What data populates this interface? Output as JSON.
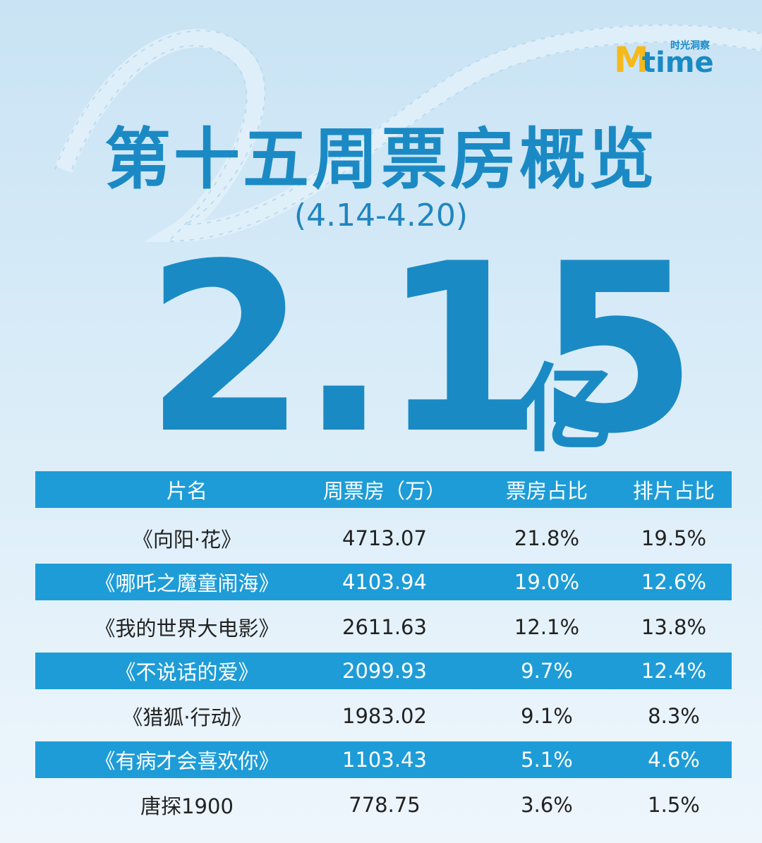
{
  "logo": {
    "mark": "M",
    "word": "time",
    "tagline": "时光洞察"
  },
  "header": {
    "title": "第十五周票房概览",
    "subtitle": "(4.14-4.20)",
    "total": "2.15",
    "unit": "亿"
  },
  "table": {
    "columns": [
      "片名",
      "周票房（万）",
      "票房占比",
      "排片占比"
    ],
    "rows": [
      [
        "《向阳·花》",
        "4713.07",
        "21.8%",
        "19.5%"
      ],
      [
        "《哪吒之魔童闹海》",
        "4103.94",
        "19.0%",
        "12.6%"
      ],
      [
        "《我的世界大电影》",
        "2611.63",
        "12.1%",
        "13.8%"
      ],
      [
        "《不说话的爱》",
        "2099.93",
        "9.7%",
        "12.4%"
      ],
      [
        "《猎狐·行动》",
        "1983.02",
        "9.1%",
        "8.3%"
      ],
      [
        "《有病才会喜欢你》",
        "1103.43",
        "5.1%",
        "4.6%"
      ],
      [
        "唐探1900",
        "778.75",
        "3.6%",
        "1.5%"
      ]
    ]
  }
}
